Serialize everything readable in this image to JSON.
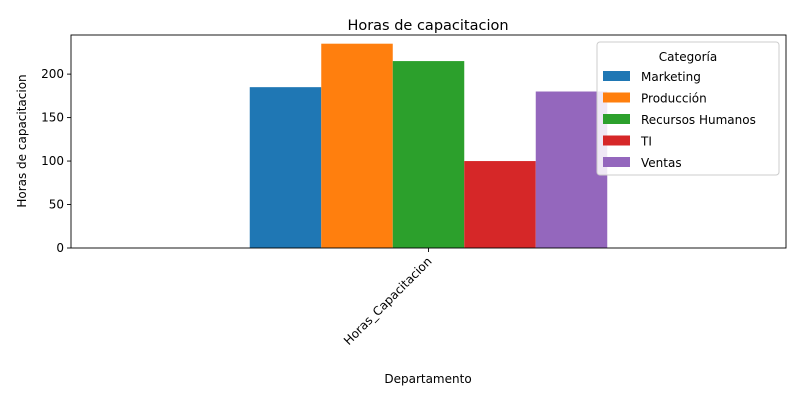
{
  "chart_data": {
    "type": "bar",
    "title": "Horas de capacitacion",
    "xlabel": "Departamento",
    "ylabel": "Horas de capacitacion",
    "categories": [
      "Horas_Capacitacion"
    ],
    "series": [
      {
        "name": "Marketing",
        "values": [
          185
        ],
        "color": "#1f77b4"
      },
      {
        "name": "Producción",
        "values": [
          235
        ],
        "color": "#ff7f0e"
      },
      {
        "name": "Recursos Humanos",
        "values": [
          215
        ],
        "color": "#2ca02c"
      },
      {
        "name": "TI",
        "values": [
          100
        ],
        "color": "#d62728"
      },
      {
        "name": "Ventas",
        "values": [
          180
        ],
        "color": "#9467bd"
      }
    ],
    "ylim": [
      0,
      245
    ],
    "yticks": [
      0,
      50,
      100,
      150,
      200
    ],
    "grid": false,
    "legend": {
      "title": "Categoría",
      "placement": "top-right"
    }
  }
}
